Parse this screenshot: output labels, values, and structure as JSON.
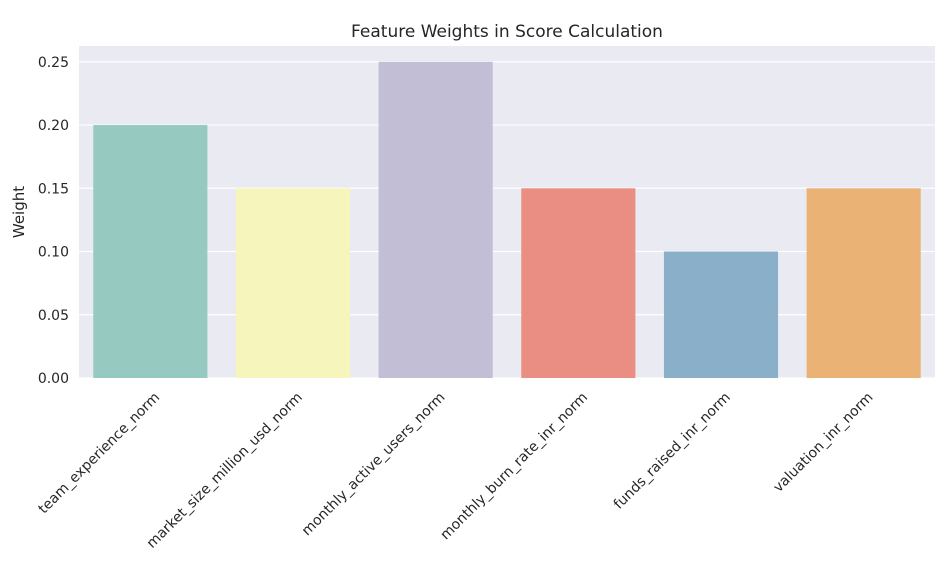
{
  "chart_data": {
    "type": "bar",
    "title": "Feature Weights in Score Calculation",
    "xlabel": "",
    "ylabel": "Weight",
    "categories": [
      "team_experience_norm",
      "market_size_million_usd_norm",
      "monthly_active_users_norm",
      "monthly_burn_rate_inr_norm",
      "funds_raised_inr_norm",
      "valuation_inr_norm"
    ],
    "values": [
      0.2,
      0.15,
      0.25,
      0.15,
      0.1,
      0.15
    ],
    "colors": [
      "#96cac1",
      "#f6f6bc",
      "#c1bed6",
      "#ea8e83",
      "#8aafc9",
      "#eab375"
    ],
    "ylim": [
      0,
      0.2625
    ],
    "yticks": [
      "0.00",
      "0.05",
      "0.10",
      "0.15",
      "0.20",
      "0.25"
    ],
    "ytick_values": [
      0,
      0.05,
      0.1,
      0.15,
      0.2,
      0.25
    ],
    "grid": true,
    "background": "#eaeaf2",
    "legend": "none"
  }
}
